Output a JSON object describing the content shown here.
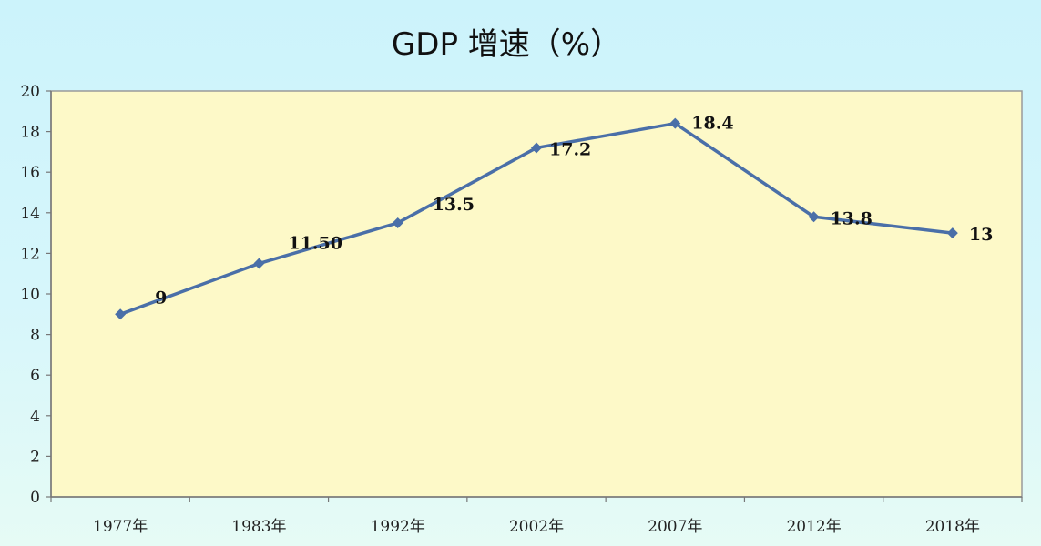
{
  "chart_data": {
    "type": "line",
    "title": "GDP 增速（%）",
    "xlabel": "",
    "ylabel": "",
    "categories": [
      "1977年",
      "1983年",
      "1992年",
      "2002年",
      "2007年",
      "2012年",
      "2018年"
    ],
    "series": [
      {
        "values": [
          9,
          11.5,
          13.5,
          17.2,
          18.4,
          13.8,
          13
        ],
        "data_labels": [
          "9",
          "11.50",
          "13.5",
          "17.2",
          "18.4",
          "13.8",
          "13"
        ]
      }
    ],
    "ylim": [
      0,
      20
    ],
    "yticks": [
      0,
      2,
      4,
      6,
      8,
      10,
      12,
      14,
      16,
      18,
      20
    ],
    "grid": false,
    "legend": "none",
    "colors": {
      "line": "#4a6fa8",
      "plot_background": "#fdf9c8"
    }
  }
}
